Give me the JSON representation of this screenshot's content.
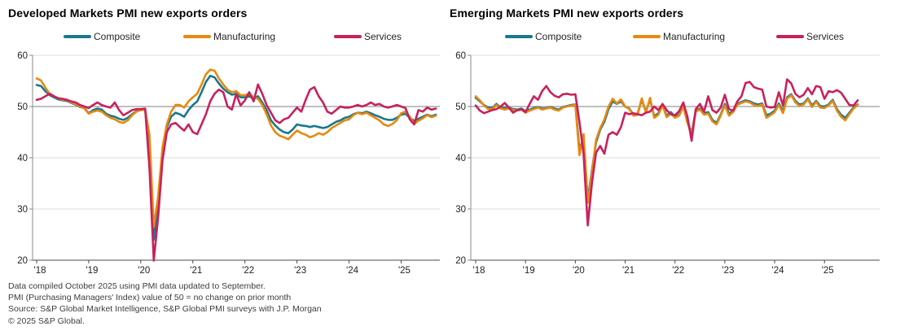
{
  "page": {
    "background": "#ffffff"
  },
  "footer": {
    "lines": [
      "Data compiled October 2025 using PMI data updated to September.",
      "PMI (Purchasing Managers' Index) value of 50 = no change on prior month",
      "Source: S&P Global Market Intelligence, S&P Global PMI surveys with J.P. Morgan",
      "© 2025 S&P Global."
    ]
  },
  "chart_data": [
    {
      "type": "line",
      "title": "Developed Markets PMI new exports orders",
      "x_frequency": "monthly",
      "x_start": "2018-01",
      "x_end": "2025-09",
      "xtick_labels": [
        "'18",
        "'19",
        "'20",
        "'21",
        "'22",
        "'23",
        "'24",
        "'25"
      ],
      "ylim": [
        20,
        60
      ],
      "yticks": [
        20,
        30,
        40,
        50,
        60
      ],
      "reference_line_y": 50,
      "legend_position": "top",
      "grid_on": true,
      "colors": {
        "grid": "#dcdcdc",
        "reference": "#9b9b9b",
        "y_axis": "#8a8a8a",
        "x_axis": "#4a4a4a",
        "tick_text": "#1f1f1f"
      },
      "series": [
        {
          "name": "Composite",
          "color": "#1b788c",
          "values": [
            54.2,
            54.0,
            53.0,
            52.2,
            51.8,
            51.4,
            51.2,
            51.1,
            50.7,
            50.4,
            49.9,
            49.7,
            48.7,
            49.3,
            49.6,
            49.4,
            48.6,
            48.2,
            48.0,
            47.6,
            47.4,
            47.8,
            48.5,
            49.1,
            49.4,
            49.5,
            42.0,
            24.0,
            31.0,
            41.0,
            46.0,
            48.0,
            48.8,
            48.5,
            48.0,
            49.3,
            50.3,
            51.0,
            52.8,
            54.8,
            56.0,
            55.7,
            54.5,
            53.5,
            52.8,
            52.3,
            52.5,
            51.8,
            51.8,
            52.0,
            51.5,
            52.0,
            50.8,
            49.3,
            47.3,
            46.3,
            45.5,
            45.0,
            44.8,
            45.5,
            46.5,
            46.3,
            46.2,
            46.0,
            46.2,
            46.0,
            45.8,
            46.0,
            46.5,
            47.0,
            47.3,
            47.8,
            48.0,
            48.5,
            48.8,
            48.7,
            49.0,
            48.7,
            48.3,
            48.0,
            47.6,
            47.4,
            47.4,
            47.8,
            48.4,
            48.6,
            47.8,
            47.2,
            47.6,
            48.0,
            48.4,
            48.1,
            48.4
          ]
        },
        {
          "name": "Manufacturing",
          "color": "#e8890f",
          "values": [
            55.5,
            55.1,
            53.7,
            52.5,
            52.0,
            51.6,
            51.3,
            51.3,
            50.8,
            50.5,
            50.0,
            49.6,
            48.6,
            49.0,
            49.2,
            49.0,
            48.3,
            47.8,
            47.5,
            47.0,
            46.8,
            47.3,
            48.3,
            49.0,
            49.3,
            49.4,
            44.5,
            26.5,
            32.5,
            42.0,
            46.5,
            49.0,
            50.3,
            50.3,
            49.8,
            51.0,
            51.8,
            52.5,
            54.3,
            56.3,
            57.2,
            57.0,
            55.5,
            54.3,
            53.3,
            52.8,
            53.0,
            52.2,
            52.2,
            52.5,
            51.8,
            51.5,
            50.3,
            48.5,
            46.3,
            45.0,
            44.3,
            44.0,
            43.6,
            44.5,
            45.3,
            44.8,
            44.5,
            44.0,
            44.3,
            44.8,
            44.5,
            45.0,
            45.8,
            46.3,
            46.8,
            47.3,
            47.5,
            48.3,
            48.8,
            48.5,
            48.8,
            48.3,
            47.8,
            47.3,
            46.5,
            46.2,
            46.6,
            47.3,
            48.7,
            49.0,
            48.0,
            46.6,
            47.2,
            47.7,
            48.3,
            47.9,
            48.2
          ]
        },
        {
          "name": "Services",
          "color": "#c8215d",
          "values": [
            51.3,
            51.5,
            52.0,
            52.5,
            52.0,
            51.6,
            51.5,
            51.3,
            51.0,
            50.8,
            50.3,
            50.0,
            49.7,
            50.3,
            50.8,
            50.3,
            50.0,
            49.8,
            50.8,
            49.3,
            48.3,
            48.8,
            49.3,
            49.5,
            49.5,
            49.6,
            38.0,
            19.9,
            28.5,
            39.5,
            45.0,
            46.5,
            46.8,
            46.0,
            45.3,
            46.5,
            45.0,
            44.6,
            46.5,
            48.5,
            51.0,
            52.5,
            53.3,
            52.8,
            50.0,
            49.4,
            52.4,
            50.2,
            51.2,
            52.8,
            51.0,
            54.3,
            52.5,
            50.3,
            48.8,
            47.3,
            46.8,
            47.5,
            47.8,
            48.8,
            49.8,
            49.0,
            51.3,
            53.3,
            53.8,
            52.0,
            50.8,
            49.0,
            48.6,
            49.3,
            50.0,
            49.8,
            49.8,
            50.0,
            50.3,
            50.0,
            50.3,
            50.8,
            50.3,
            50.5,
            50.0,
            49.8,
            50.0,
            50.3,
            50.0,
            49.7,
            47.5,
            46.5,
            49.3,
            49.0,
            49.8,
            49.4,
            49.6
          ]
        }
      ]
    },
    {
      "type": "line",
      "title": "Emerging Markets PMI new exports orders",
      "x_frequency": "monthly",
      "x_start": "2018-01",
      "x_end": "2025-09",
      "xtick_labels": [
        "'18",
        "'19",
        "'20",
        "'21",
        "'22",
        "'23",
        "'24",
        "'25"
      ],
      "ylim": [
        20,
        60
      ],
      "yticks": [
        20,
        30,
        40,
        50,
        60
      ],
      "reference_line_y": 50,
      "legend_position": "top",
      "grid_on": true,
      "colors": {
        "grid": "#dcdcdc",
        "reference": "#9b9b9b",
        "y_axis": "#8a8a8a",
        "x_axis": "#4a4a4a",
        "tick_text": "#1f1f1f"
      },
      "series": [
        {
          "name": "Composite",
          "color": "#1b788c",
          "values": [
            51.7,
            51.0,
            50.3,
            49.8,
            49.7,
            50.5,
            49.8,
            49.7,
            49.8,
            49.5,
            49.4,
            49.6,
            49.1,
            49.4,
            49.7,
            49.9,
            49.6,
            49.7,
            49.9,
            49.6,
            49.4,
            49.9,
            50.1,
            50.3,
            50.4,
            41.5,
            44.0,
            31.8,
            37.5,
            43.0,
            45.5,
            47.0,
            49.5,
            51.0,
            50.5,
            51.0,
            50.0,
            49.6,
            48.4,
            48.6,
            51.3,
            49.0,
            51.4,
            48.1,
            48.7,
            50.3,
            48.2,
            48.9,
            48.0,
            48.4,
            50.3,
            47.0,
            44.8,
            49.2,
            49.6,
            48.7,
            48.9,
            47.4,
            46.8,
            48.4,
            50.5,
            48.6,
            49.2,
            50.5,
            50.9,
            51.2,
            51.0,
            50.6,
            50.4,
            50.6,
            48.3,
            48.6,
            49.2,
            50.6,
            49.1,
            51.8,
            52.4,
            51.1,
            50.4,
            50.6,
            51.6,
            50.2,
            51.1,
            50.1,
            50.0,
            50.4,
            51.3,
            49.5,
            48.4,
            47.8,
            48.8,
            49.8,
            50.4
          ]
        },
        {
          "name": "Manufacturing",
          "color": "#e8890f",
          "values": [
            52.0,
            51.2,
            50.2,
            49.5,
            49.5,
            50.3,
            49.6,
            49.4,
            49.6,
            49.3,
            49.2,
            49.4,
            48.8,
            49.2,
            49.5,
            49.8,
            49.4,
            49.6,
            49.8,
            49.4,
            49.2,
            49.8,
            50.0,
            50.2,
            50.3,
            40.5,
            44.6,
            31.2,
            37.0,
            43.5,
            45.8,
            47.5,
            50.0,
            51.5,
            50.6,
            51.4,
            50.0,
            49.5,
            48.2,
            48.4,
            51.6,
            48.8,
            51.7,
            47.8,
            48.4,
            50.2,
            47.9,
            48.6,
            47.8,
            48.2,
            50.0,
            46.8,
            44.6,
            49.0,
            49.4,
            48.4,
            48.6,
            47.1,
            46.5,
            48.2,
            50.2,
            48.2,
            48.9,
            50.3,
            50.7,
            51.0,
            50.8,
            50.3,
            50.1,
            50.4,
            47.8,
            48.3,
            48.9,
            50.3,
            48.7,
            51.5,
            52.2,
            50.8,
            50.1,
            50.4,
            51.4,
            49.9,
            50.9,
            49.8,
            49.7,
            50.2,
            51.1,
            49.2,
            48.0,
            47.3,
            48.5,
            49.6,
            50.3
          ]
        },
        {
          "name": "Services",
          "color": "#c8215d",
          "values": [
            50.2,
            49.2,
            48.7,
            49.0,
            49.3,
            49.5,
            50.0,
            50.7,
            49.8,
            48.8,
            49.3,
            49.5,
            48.9,
            50.5,
            52.0,
            51.3,
            53.0,
            54.0,
            52.8,
            52.1,
            51.8,
            52.4,
            52.5,
            52.3,
            52.4,
            47.0,
            40.7,
            26.8,
            35.0,
            41.0,
            42.3,
            40.8,
            44.5,
            45.0,
            44.5,
            46.0,
            48.8,
            48.5,
            48.7,
            48.5,
            48.3,
            48.8,
            49.0,
            50.0,
            49.3,
            50.5,
            49.3,
            48.5,
            48.3,
            49.1,
            50.8,
            48.0,
            43.3,
            49.5,
            50.5,
            49.0,
            52.0,
            49.3,
            48.8,
            49.8,
            52.3,
            49.5,
            49.2,
            51.0,
            52.0,
            54.6,
            54.8,
            53.8,
            53.5,
            53.3,
            50.0,
            49.8,
            49.9,
            52.8,
            50.2,
            55.3,
            54.5,
            52.5,
            51.8,
            52.3,
            53.6,
            52.4,
            54.0,
            53.8,
            51.5,
            53.0,
            52.8,
            53.2,
            52.7,
            51.5,
            50.3,
            50.2,
            51.2
          ]
        }
      ]
    }
  ]
}
